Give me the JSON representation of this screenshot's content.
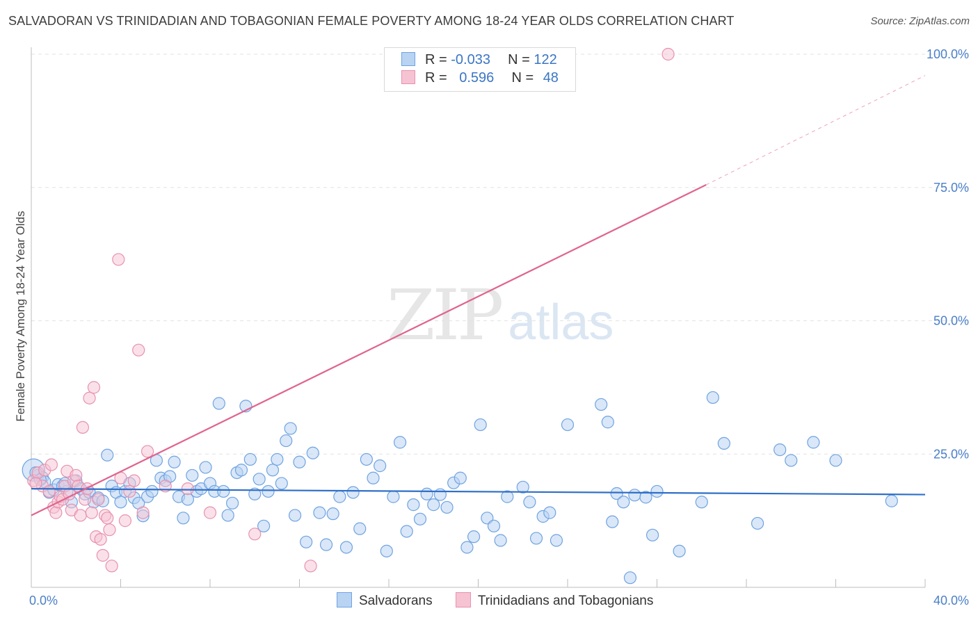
{
  "title": "SALVADORAN VS TRINIDADIAN AND TOBAGONIAN FEMALE POVERTY AMONG 18-24 YEAR OLDS CORRELATION CHART",
  "source": "Source: ZipAtlas.com",
  "watermark": {
    "zip": "ZIP",
    "atlas": "atlas"
  },
  "colors": {
    "blue": "#6fa3e0",
    "blue_fill": "#b9d3f3",
    "blue_line": "#2f6fc8",
    "pink": "#e891ae",
    "pink_fill": "#f6c3d3",
    "pink_line": "#e0648e",
    "axis_text": "#4a7fc9",
    "grid": "#e2e2e2"
  },
  "legend": {
    "rows": [
      {
        "r_label": "R =",
        "r_value": "-0.033",
        "n_label": "N =",
        "n_value": "122"
      },
      {
        "r_label": "R =",
        "r_value": "0.596",
        "n_label": "N =",
        "n_value": "48"
      }
    ]
  },
  "bottom_legend": [
    "Salvadorans",
    "Trinidadians and Tobagonians"
  ],
  "chart_data": {
    "type": "scatter",
    "ylabel": "Female Poverty Among 18-24 Year Olds",
    "xlim": [
      0,
      40
    ],
    "ylim": [
      0,
      100
    ],
    "x_tick_labels": [
      "0.0%",
      "40.0%"
    ],
    "y_ticks": [
      25,
      50,
      75,
      100
    ],
    "y_tick_labels": [
      "25.0%",
      "50.0%",
      "75.0%",
      "100.0%"
    ],
    "grid": "horizontal dashed",
    "legend_position": "top-center",
    "series": [
      {
        "name": "Salvadorans",
        "trend": {
          "x0": 0,
          "y0": 18.5,
          "x1": 40,
          "y1": 17.4
        },
        "points": [
          [
            0.1,
            22.0
          ],
          [
            0.3,
            21.0
          ],
          [
            0.5,
            20.6
          ],
          [
            0.6,
            19.8
          ],
          [
            0.8,
            17.8
          ],
          [
            1.0,
            18.3
          ],
          [
            1.2,
            19.3
          ],
          [
            1.4,
            19.0
          ],
          [
            1.6,
            18.0
          ],
          [
            1.8,
            16.0
          ],
          [
            2.0,
            20.0
          ],
          [
            2.2,
            18.5
          ],
          [
            2.4,
            17.5
          ],
          [
            2.6,
            17.8
          ],
          [
            2.8,
            16.0
          ],
          [
            3.0,
            16.8
          ],
          [
            3.2,
            16.2
          ],
          [
            3.4,
            24.8
          ],
          [
            3.6,
            19.0
          ],
          [
            3.8,
            17.8
          ],
          [
            4.0,
            16.0
          ],
          [
            4.2,
            18.0
          ],
          [
            4.4,
            19.5
          ],
          [
            4.6,
            16.8
          ],
          [
            4.8,
            15.8
          ],
          [
            5.0,
            13.4
          ],
          [
            5.2,
            17.0
          ],
          [
            5.4,
            18.0
          ],
          [
            5.6,
            23.8
          ],
          [
            5.8,
            20.5
          ],
          [
            6.0,
            20.0
          ],
          [
            6.2,
            20.8
          ],
          [
            6.4,
            23.5
          ],
          [
            6.6,
            17.0
          ],
          [
            6.8,
            13.0
          ],
          [
            7.0,
            16.5
          ],
          [
            7.2,
            21.0
          ],
          [
            7.4,
            18.0
          ],
          [
            7.6,
            18.5
          ],
          [
            7.8,
            22.5
          ],
          [
            8.0,
            19.5
          ],
          [
            8.2,
            18.0
          ],
          [
            8.4,
            34.5
          ],
          [
            8.6,
            18.0
          ],
          [
            8.8,
            13.5
          ],
          [
            9.0,
            15.8
          ],
          [
            9.2,
            21.5
          ],
          [
            9.4,
            22.0
          ],
          [
            9.6,
            34.0
          ],
          [
            9.8,
            24.0
          ],
          [
            10.0,
            17.5
          ],
          [
            10.2,
            20.3
          ],
          [
            10.4,
            11.5
          ],
          [
            10.6,
            18.0
          ],
          [
            10.8,
            22.0
          ],
          [
            11.0,
            24.0
          ],
          [
            11.2,
            19.5
          ],
          [
            11.4,
            27.5
          ],
          [
            11.6,
            29.8
          ],
          [
            11.8,
            13.5
          ],
          [
            12.0,
            23.5
          ],
          [
            12.3,
            8.5
          ],
          [
            12.6,
            25.2
          ],
          [
            12.9,
            14.0
          ],
          [
            13.2,
            8.0
          ],
          [
            13.5,
            13.8
          ],
          [
            13.8,
            17.0
          ],
          [
            14.1,
            7.5
          ],
          [
            14.4,
            17.8
          ],
          [
            14.7,
            11.0
          ],
          [
            15.0,
            24.0
          ],
          [
            15.3,
            20.5
          ],
          [
            15.6,
            22.8
          ],
          [
            15.9,
            6.8
          ],
          [
            16.2,
            17.0
          ],
          [
            16.5,
            27.2
          ],
          [
            16.8,
            10.5
          ],
          [
            17.1,
            15.5
          ],
          [
            17.4,
            12.8
          ],
          [
            17.7,
            17.5
          ],
          [
            18.0,
            15.5
          ],
          [
            18.3,
            17.4
          ],
          [
            18.6,
            15.0
          ],
          [
            18.9,
            19.6
          ],
          [
            19.2,
            20.5
          ],
          [
            19.5,
            7.5
          ],
          [
            19.8,
            9.5
          ],
          [
            20.1,
            30.5
          ],
          [
            20.4,
            13.0
          ],
          [
            20.7,
            11.5
          ],
          [
            21.0,
            8.8
          ],
          [
            21.3,
            17.0
          ],
          [
            22.0,
            18.8
          ],
          [
            22.3,
            16.0
          ],
          [
            22.6,
            9.2
          ],
          [
            22.9,
            13.3
          ],
          [
            23.2,
            14.0
          ],
          [
            23.5,
            8.8
          ],
          [
            24.0,
            30.5
          ],
          [
            25.5,
            34.3
          ],
          [
            25.8,
            31.0
          ],
          [
            26.0,
            12.3
          ],
          [
            26.2,
            17.6
          ],
          [
            26.5,
            16.0
          ],
          [
            26.8,
            1.8
          ],
          [
            27.0,
            17.3
          ],
          [
            27.5,
            16.9
          ],
          [
            27.8,
            9.8
          ],
          [
            28.0,
            18.0
          ],
          [
            29.0,
            6.8
          ],
          [
            30.0,
            16.0
          ],
          [
            30.5,
            35.6
          ],
          [
            31.0,
            27.0
          ],
          [
            32.5,
            12.0
          ],
          [
            33.5,
            25.8
          ],
          [
            34.0,
            23.8
          ],
          [
            35.0,
            27.2
          ],
          [
            36.0,
            23.8
          ],
          [
            38.5,
            16.2
          ],
          [
            0.2,
            21.5
          ],
          [
            0.4,
            20.2
          ],
          [
            1.5,
            19.5
          ]
        ]
      },
      {
        "name": "Trinidadians and Tobagonians",
        "trend": {
          "x0": 0,
          "y0": 13.5,
          "x1": 30.2,
          "y1": 75.5,
          "x_dash_end": 40,
          "y_dash_end": 96.0
        },
        "points": [
          [
            0.1,
            20.0
          ],
          [
            0.3,
            21.5
          ],
          [
            0.5,
            19.0
          ],
          [
            0.6,
            22.0
          ],
          [
            0.8,
            18.0
          ],
          [
            0.9,
            23.0
          ],
          [
            1.0,
            15.0
          ],
          [
            1.1,
            14.0
          ],
          [
            1.2,
            16.0
          ],
          [
            1.3,
            17.0
          ],
          [
            1.4,
            16.5
          ],
          [
            1.5,
            19.0
          ],
          [
            1.6,
            21.8
          ],
          [
            1.7,
            17.5
          ],
          [
            1.8,
            14.5
          ],
          [
            1.9,
            20.0
          ],
          [
            2.0,
            21.0
          ],
          [
            2.1,
            19.0
          ],
          [
            2.2,
            13.5
          ],
          [
            2.3,
            30.0
          ],
          [
            2.4,
            16.5
          ],
          [
            2.5,
            18.5
          ],
          [
            2.6,
            35.5
          ],
          [
            2.7,
            14.0
          ],
          [
            2.8,
            37.5
          ],
          [
            2.9,
            9.5
          ],
          [
            3.0,
            16.5
          ],
          [
            3.1,
            9.0
          ],
          [
            3.2,
            6.0
          ],
          [
            3.3,
            13.5
          ],
          [
            3.4,
            13.0
          ],
          [
            3.5,
            10.8
          ],
          [
            3.6,
            4.0
          ],
          [
            3.9,
            61.5
          ],
          [
            4.0,
            20.5
          ],
          [
            4.2,
            12.5
          ],
          [
            4.4,
            18.0
          ],
          [
            4.6,
            20.0
          ],
          [
            4.8,
            44.5
          ],
          [
            5.0,
            14.0
          ],
          [
            5.2,
            25.5
          ],
          [
            6.0,
            19.0
          ],
          [
            7.0,
            18.5
          ],
          [
            8.0,
            14.0
          ],
          [
            10.0,
            10.0
          ],
          [
            12.5,
            4.0
          ],
          [
            28.5,
            100.0
          ],
          [
            0.2,
            19.5
          ]
        ]
      }
    ]
  }
}
